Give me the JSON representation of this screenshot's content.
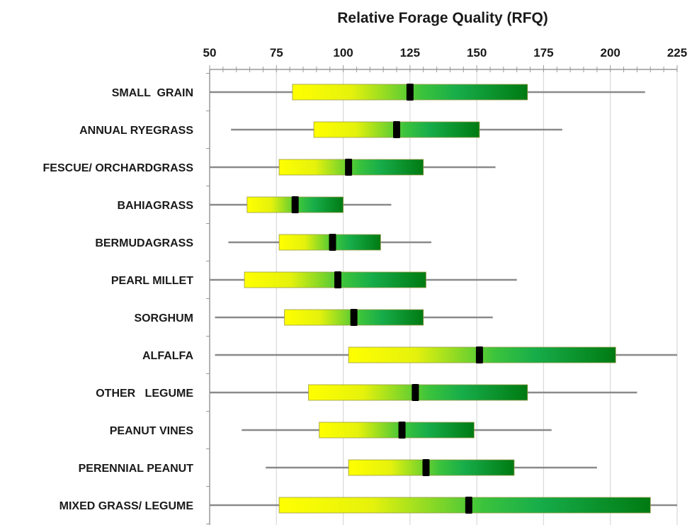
{
  "chart_data": {
    "type": "box",
    "title": "Relative Forage Quality (RFQ)",
    "xlabel": "",
    "ylabel": "",
    "x_axis_position": "top",
    "xlim": [
      50,
      225
    ],
    "x_ticks": [
      50,
      75,
      100,
      125,
      150,
      175,
      200,
      225
    ],
    "grid": true,
    "colors": {
      "box_low": "#ffff00",
      "box_mid": "#19b24b",
      "box_high": "#007a12",
      "median": "#000000",
      "whisker": "#8a8a8a",
      "grid": "#d9d9d9",
      "axis": "#999999"
    },
    "categories": [
      "SMALL  GRAIN",
      "ANNUAL RYEGRASS",
      "FESCUE/ ORCHARDGRASS",
      "BAHIAGRASS",
      "BERMUDAGRASS",
      "PEARL MILLET",
      "SORGHUM",
      "ALFALFA",
      "OTHER   LEGUME",
      "PEANUT VINES",
      "PERENNIAL PEANUT",
      "MIXED GRASS/ LEGUME"
    ],
    "boxes": [
      {
        "min": 50,
        "q1": 81,
        "median": 125,
        "q3": 169,
        "max": 213
      },
      {
        "min": 58,
        "q1": 89,
        "median": 120,
        "q3": 151,
        "max": 182
      },
      {
        "min": 50,
        "q1": 76,
        "median": 102,
        "q3": 130,
        "max": 157
      },
      {
        "min": 50,
        "q1": 64,
        "median": 82,
        "q3": 100,
        "max": 118
      },
      {
        "min": 57,
        "q1": 76,
        "median": 96,
        "q3": 114,
        "max": 133
      },
      {
        "min": 50,
        "q1": 63,
        "median": 98,
        "q3": 131,
        "max": 165
      },
      {
        "min": 52,
        "q1": 78,
        "median": 104,
        "q3": 130,
        "max": 156
      },
      {
        "min": 52,
        "q1": 102,
        "median": 151,
        "q3": 202,
        "max": 225
      },
      {
        "min": 50,
        "q1": 87,
        "median": 127,
        "q3": 169,
        "max": 210
      },
      {
        "min": 62,
        "q1": 91,
        "median": 122,
        "q3": 149,
        "max": 178
      },
      {
        "min": 71,
        "q1": 102,
        "median": 131,
        "q3": 164,
        "max": 195
      },
      {
        "min": 50,
        "q1": 76,
        "median": 147,
        "q3": 215,
        "max": 225
      }
    ]
  }
}
